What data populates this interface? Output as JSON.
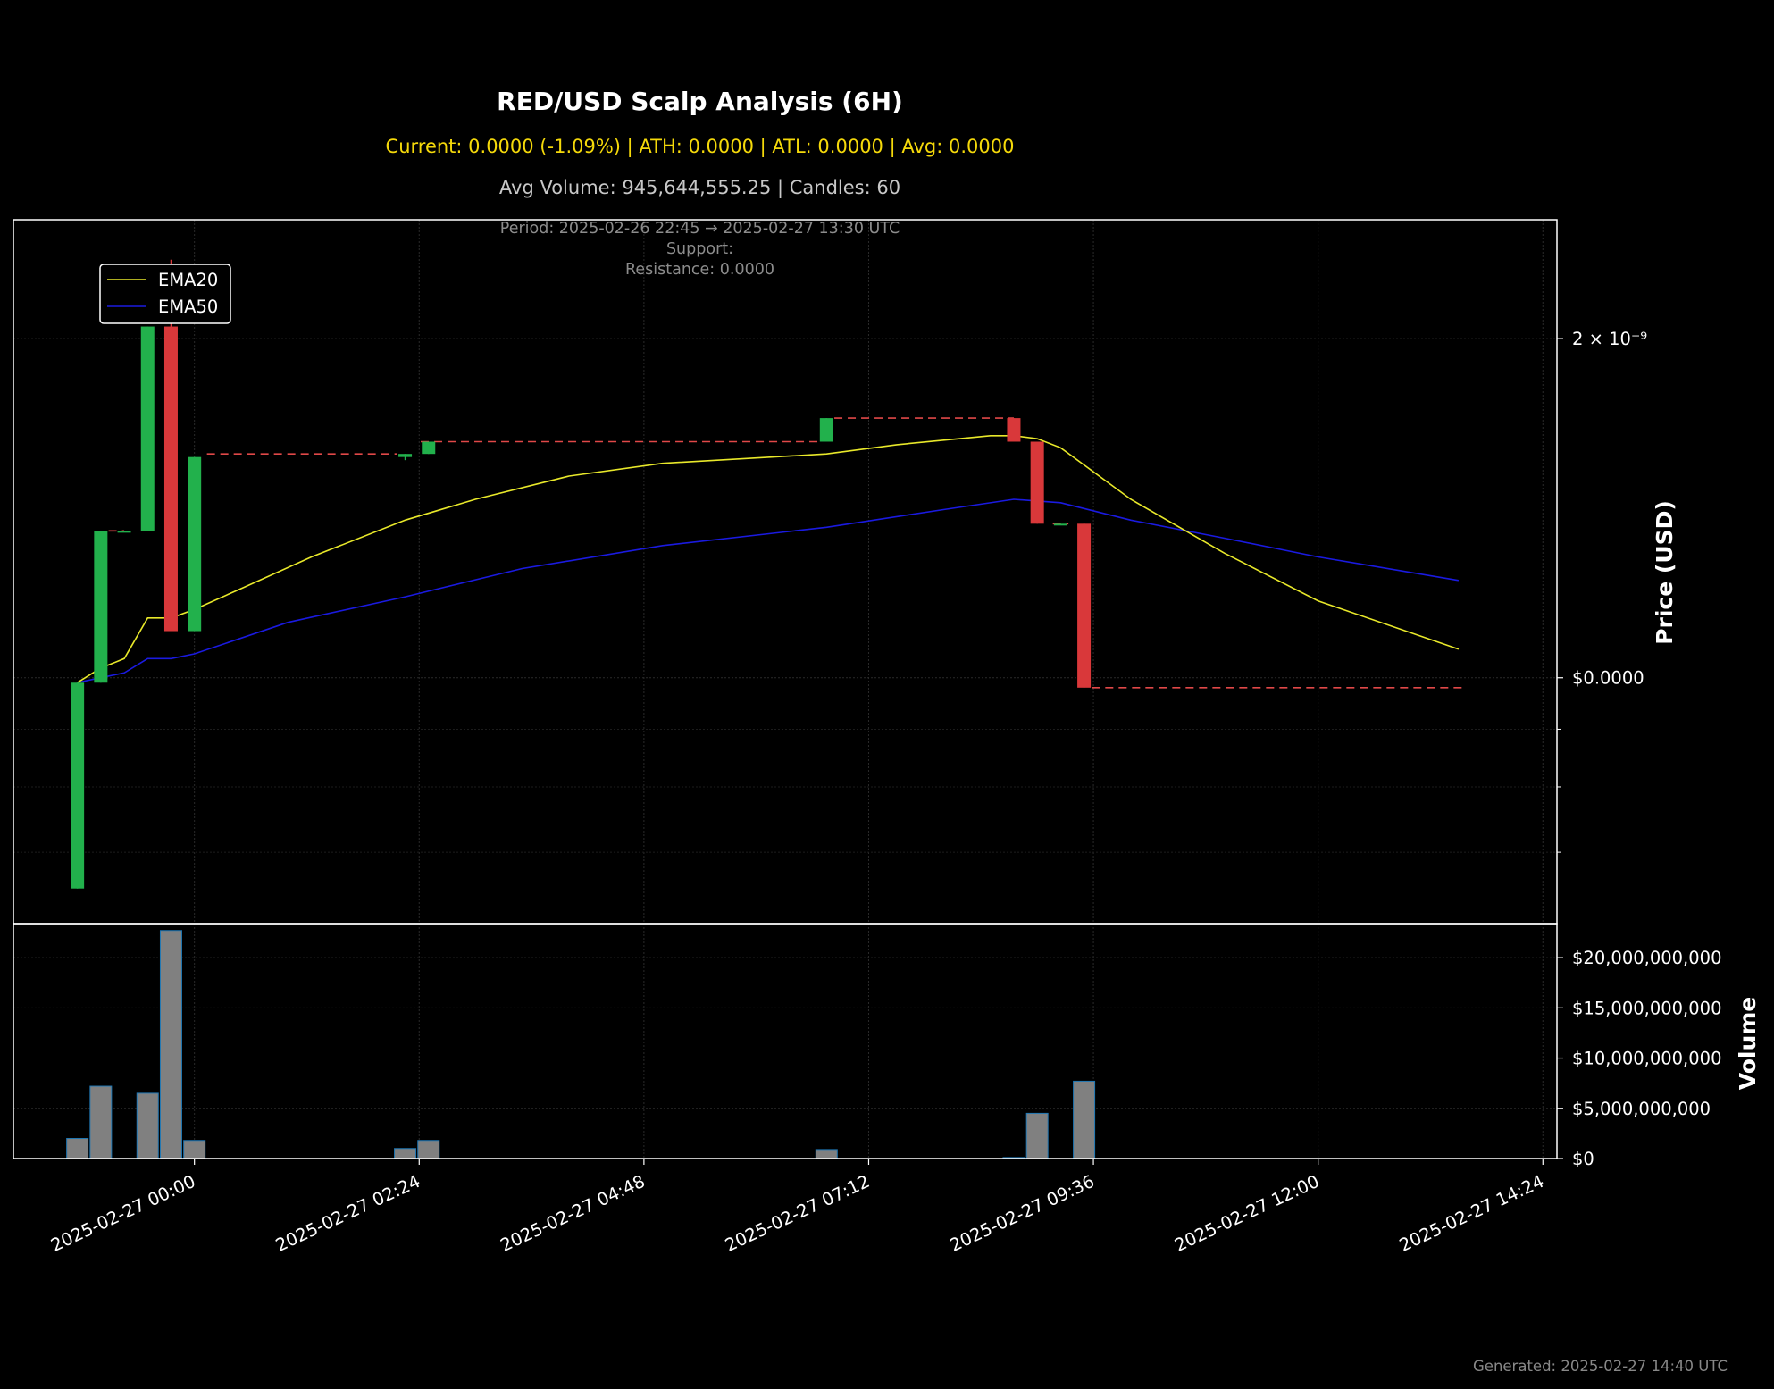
{
  "header": {
    "title": "RED/USD Scalp Analysis (6H)",
    "subtitle": "Current: 0.0000 (-1.09%) | ATH: 0.0000 | ATL: 0.0000 | Avg: 0.0000",
    "subtitle2": "Avg Volume: 945,644,555.25 | Candles: 60",
    "period": "Period: 2025-02-26 22:45 → 2025-02-27 13:30 UTC",
    "support": "Support:",
    "resistance": "Resistance: 0.0000"
  },
  "footer": {
    "generated": "Generated: 2025-02-27 14:40 UTC"
  },
  "colors": {
    "background": "#000000",
    "bullish": "#22b14c",
    "bearish": "#d9383a",
    "ema20": "#e8e82a",
    "ema50": "#1a1ae0",
    "volume_bar": "#808080",
    "volume_edge": "#1f77b4",
    "level_line": "#e04848"
  },
  "chart_data": [
    {
      "type": "candlestick",
      "ylabel": "Price (USD)",
      "yscale": "log",
      "yticks": [
        {
          "value": 2e-09,
          "label": "2 × 10⁻⁹"
        },
        {
          "value": 1e-09,
          "label": "$0.0000"
        }
      ],
      "x_ticks": [
        "2025-02-27 00:00",
        "2025-02-27 02:24",
        "2025-02-27 04:48",
        "2025-02-27 07:12",
        "2025-02-27 09:36",
        "2025-02-27 12:00",
        "2025-02-27 14:24"
      ],
      "grid": true,
      "legend": {
        "position": "top-left",
        "entries": [
          "EMA20",
          "EMA50"
        ]
      },
      "candles": [
        {
          "time": "2025-02-26 22:45",
          "open": 6.5e-10,
          "high": 9.9e-10,
          "low": 6.5e-10,
          "close": 9.9e-10
        },
        {
          "time": "2025-02-26 23:00",
          "open": 9.9e-10,
          "high": 1.35e-09,
          "low": 9.9e-10,
          "close": 1.35e-09
        },
        {
          "time": "2025-02-26 23:15",
          "open": 1.35e-09,
          "high": 1.35e-09,
          "low": 1.35e-09,
          "close": 1.35e-09
        },
        {
          "time": "2025-02-26 23:30",
          "open": 1.35e-09,
          "high": 2.05e-09,
          "low": 1.35e-09,
          "close": 2.05e-09
        },
        {
          "time": "2025-02-26 23:45",
          "open": 2.05e-09,
          "high": 2.35e-09,
          "low": 1.1e-09,
          "close": 1.1e-09
        },
        {
          "time": "2025-02-27 00:00",
          "open": 1.1e-09,
          "high": 1.57e-09,
          "low": 1.1e-09,
          "close": 1.57e-09
        },
        {
          "time": "2025-02-27 02:15",
          "open": 1.57e-09,
          "high": 1.58e-09,
          "low": 1.56e-09,
          "close": 1.58e-09
        },
        {
          "time": "2025-02-27 02:30",
          "open": 1.58e-09,
          "high": 1.62e-09,
          "low": 1.58e-09,
          "close": 1.62e-09
        },
        {
          "time": "2025-02-27 06:45",
          "open": 1.62e-09,
          "high": 1.7e-09,
          "low": 1.62e-09,
          "close": 1.7e-09
        },
        {
          "time": "2025-02-27 08:45",
          "open": 1.7e-09,
          "high": 1.7e-09,
          "low": 1.62e-09,
          "close": 1.62e-09
        },
        {
          "time": "2025-02-27 09:00",
          "open": 1.62e-09,
          "high": 1.62e-09,
          "low": 1.37e-09,
          "close": 1.37e-09
        },
        {
          "time": "2025-02-27 09:15",
          "open": 1.37e-09,
          "high": 1.37e-09,
          "low": 1.37e-09,
          "close": 1.37e-09
        },
        {
          "time": "2025-02-27 09:30",
          "open": 1.37e-09,
          "high": 1.37e-09,
          "low": 9.8e-10,
          "close": 9.8e-10
        }
      ],
      "ema20": [
        {
          "time": "2025-02-26 22:45",
          "value": 9.9e-10
        },
        {
          "time": "2025-02-26 23:00",
          "value": 1.02e-09
        },
        {
          "time": "2025-02-26 23:15",
          "value": 1.04e-09
        },
        {
          "time": "2025-02-26 23:30",
          "value": 1.13e-09
        },
        {
          "time": "2025-02-26 23:45",
          "value": 1.13e-09
        },
        {
          "time": "2025-02-27 00:00",
          "value": 1.15e-09
        },
        {
          "time": "2025-02-27 00:30",
          "value": 1.2e-09
        },
        {
          "time": "2025-02-27 01:15",
          "value": 1.28e-09
        },
        {
          "time": "2025-02-27 02:15",
          "value": 1.38e-09
        },
        {
          "time": "2025-02-27 03:00",
          "value": 1.44e-09
        },
        {
          "time": "2025-02-27 04:00",
          "value": 1.51e-09
        },
        {
          "time": "2025-02-27 05:00",
          "value": 1.55e-09
        },
        {
          "time": "2025-02-27 06:45",
          "value": 1.58e-09
        },
        {
          "time": "2025-02-27 07:30",
          "value": 1.61e-09
        },
        {
          "time": "2025-02-27 08:30",
          "value": 1.64e-09
        },
        {
          "time": "2025-02-27 08:45",
          "value": 1.64e-09
        },
        {
          "time": "2025-02-27 09:00",
          "value": 1.63e-09
        },
        {
          "time": "2025-02-27 09:15",
          "value": 1.6e-09
        },
        {
          "time": "2025-02-27 10:00",
          "value": 1.44e-09
        },
        {
          "time": "2025-02-27 11:00",
          "value": 1.29e-09
        },
        {
          "time": "2025-02-27 12:00",
          "value": 1.17e-09
        },
        {
          "time": "2025-02-27 13:30",
          "value": 1.06e-09
        }
      ],
      "ema50": [
        {
          "time": "2025-02-26 22:45",
          "value": 9.9e-10
        },
        {
          "time": "2025-02-26 23:00",
          "value": 1e-09
        },
        {
          "time": "2025-02-26 23:15",
          "value": 1.01e-09
        },
        {
          "time": "2025-02-26 23:30",
          "value": 1.04e-09
        },
        {
          "time": "2025-02-26 23:45",
          "value": 1.04e-09
        },
        {
          "time": "2025-02-27 00:00",
          "value": 1.05e-09
        },
        {
          "time": "2025-02-27 01:00",
          "value": 1.12e-09
        },
        {
          "time": "2025-02-27 02:15",
          "value": 1.18e-09
        },
        {
          "time": "2025-02-27 03:30",
          "value": 1.25e-09
        },
        {
          "time": "2025-02-27 05:00",
          "value": 1.31e-09
        },
        {
          "time": "2025-02-27 06:45",
          "value": 1.36e-09
        },
        {
          "time": "2025-02-27 08:00",
          "value": 1.41e-09
        },
        {
          "time": "2025-02-27 08:45",
          "value": 1.44e-09
        },
        {
          "time": "2025-02-27 09:15",
          "value": 1.43e-09
        },
        {
          "time": "2025-02-27 10:00",
          "value": 1.38e-09
        },
        {
          "time": "2025-02-27 11:00",
          "value": 1.33e-09
        },
        {
          "time": "2025-02-27 12:00",
          "value": 1.28e-09
        },
        {
          "time": "2025-02-27 13:30",
          "value": 1.22e-09
        }
      ],
      "resistance_segments": [
        {
          "start": "2025-02-26 23:05",
          "end": "2025-02-26 23:15",
          "value": 1.35e-09
        },
        {
          "start": "2025-02-27 00:08",
          "end": "2025-02-27 02:10",
          "value": 1.58e-09
        },
        {
          "start": "2025-02-27 02:25",
          "end": "2025-02-27 06:40",
          "value": 1.62e-09
        },
        {
          "start": "2025-02-27 06:50",
          "end": "2025-02-27 08:45",
          "value": 1.7e-09
        },
        {
          "start": "2025-02-27 09:10",
          "end": "2025-02-27 09:20",
          "value": 1.37e-09
        },
        {
          "start": "2025-02-27 09:35",
          "end": "2025-02-27 13:35",
          "value": 9.8e-10
        }
      ]
    },
    {
      "type": "bar",
      "ylabel": "Volume",
      "ylim": [
        0,
        22500000000
      ],
      "yticks": [
        {
          "value": 0,
          "label": "$0"
        },
        {
          "value": 5000000000,
          "label": "$5,000,000,000"
        },
        {
          "value": 10000000000,
          "label": "$10,000,000,000"
        },
        {
          "value": 15000000000,
          "label": "$15,000,000,000"
        },
        {
          "value": 20000000000,
          "label": "$20,000,000,000"
        }
      ],
      "bars": [
        {
          "time": "2025-02-26 22:45",
          "value": 2000000000
        },
        {
          "time": "2025-02-26 23:00",
          "value": 7200000000
        },
        {
          "time": "2025-02-26 23:30",
          "value": 6500000000
        },
        {
          "time": "2025-02-26 23:45",
          "value": 22700000000
        },
        {
          "time": "2025-02-27 00:00",
          "value": 1800000000
        },
        {
          "time": "2025-02-27 02:15",
          "value": 1000000000
        },
        {
          "time": "2025-02-27 02:30",
          "value": 1800000000
        },
        {
          "time": "2025-02-27 06:45",
          "value": 900000000
        },
        {
          "time": "2025-02-27 08:45",
          "value": 100000000
        },
        {
          "time": "2025-02-27 09:00",
          "value": 4500000000
        },
        {
          "time": "2025-02-27 09:30",
          "value": 7700000000
        }
      ]
    }
  ]
}
